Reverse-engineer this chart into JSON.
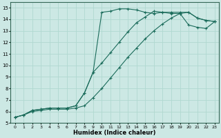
{
  "xlabel": "Humidex (Indice chaleur)",
  "bg_color": "#cce8e4",
  "grid_color": "#b0d8d0",
  "line_color": "#1a6b5a",
  "xlim": [
    -0.5,
    23.5
  ],
  "ylim": [
    5,
    15.5
  ],
  "xticks": [
    0,
    1,
    2,
    3,
    4,
    5,
    6,
    7,
    8,
    9,
    10,
    11,
    12,
    13,
    14,
    15,
    16,
    17,
    18,
    19,
    20,
    21,
    22,
    23
  ],
  "yticks": [
    5,
    6,
    7,
    8,
    9,
    10,
    11,
    12,
    13,
    14,
    15
  ],
  "line1_x": [
    0,
    1,
    2,
    3,
    4,
    5,
    6,
    7,
    8,
    9,
    10,
    11,
    12,
    13,
    14,
    15,
    16,
    17,
    18,
    19,
    20,
    21,
    22,
    23
  ],
  "line1_y": [
    5.5,
    5.7,
    6.1,
    6.2,
    6.3,
    6.3,
    6.3,
    6.5,
    7.6,
    9.4,
    14.6,
    14.7,
    14.9,
    14.9,
    14.8,
    14.6,
    14.5,
    14.6,
    14.6,
    14.6,
    14.6,
    14.1,
    13.9,
    13.8
  ],
  "line2_x": [
    0,
    1,
    2,
    3,
    4,
    5,
    6,
    7,
    8,
    9,
    10,
    11,
    12,
    13,
    14,
    15,
    16,
    17,
    18,
    19,
    20,
    21,
    22,
    23
  ],
  "line2_y": [
    5.5,
    5.7,
    6.1,
    6.2,
    6.3,
    6.3,
    6.3,
    6.5,
    7.6,
    9.4,
    10.2,
    11.1,
    12.0,
    12.9,
    13.7,
    14.2,
    14.7,
    14.6,
    14.5,
    14.5,
    14.6,
    14.1,
    13.9,
    13.8
  ],
  "line3_x": [
    0,
    1,
    2,
    3,
    4,
    5,
    6,
    7,
    8,
    9,
    10,
    11,
    12,
    13,
    14,
    15,
    16,
    17,
    18,
    19,
    20,
    21,
    22,
    23
  ],
  "line3_y": [
    5.5,
    5.7,
    6.0,
    6.1,
    6.2,
    6.2,
    6.2,
    6.3,
    6.5,
    7.2,
    8.0,
    8.9,
    9.8,
    10.7,
    11.5,
    12.3,
    13.0,
    13.6,
    14.1,
    14.5,
    13.5,
    13.3,
    13.2,
    13.8
  ]
}
